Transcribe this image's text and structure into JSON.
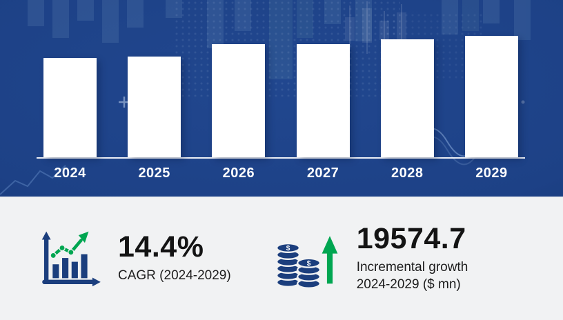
{
  "chart_data": {
    "type": "bar",
    "title": "Market size by year (bars unlabeled, relative heights)",
    "categories": [
      "2024",
      "2025",
      "2026",
      "2027",
      "2028",
      "2029"
    ],
    "values": [
      82,
      83,
      93,
      93,
      97,
      100
    ],
    "ylim": [
      0,
      100
    ],
    "xlabel": "",
    "ylabel": "",
    "grid": false,
    "legend": false,
    "bar_color": "#ffffff",
    "label_color": "#ffffff",
    "background": "#1d4186"
  },
  "stats": {
    "cagr": {
      "icon": "growth-chart-icon",
      "value": "14.4%",
      "label": "CAGR (2024-2029)"
    },
    "incremental": {
      "icon": "coins-up-arrow-icon",
      "value": "19574.7",
      "label_line1": "Incremental growth",
      "label_line2": "2024-2029 ($ mn)"
    }
  },
  "theme": {
    "top_background": "#1d4186",
    "bottom_background": "#f1f2f3",
    "bar_color": "#ffffff",
    "text_on_dark": "#ffffff",
    "text_dark": "#141414",
    "accent_green": "#00a651",
    "icon_navy": "#1b3e7d"
  }
}
